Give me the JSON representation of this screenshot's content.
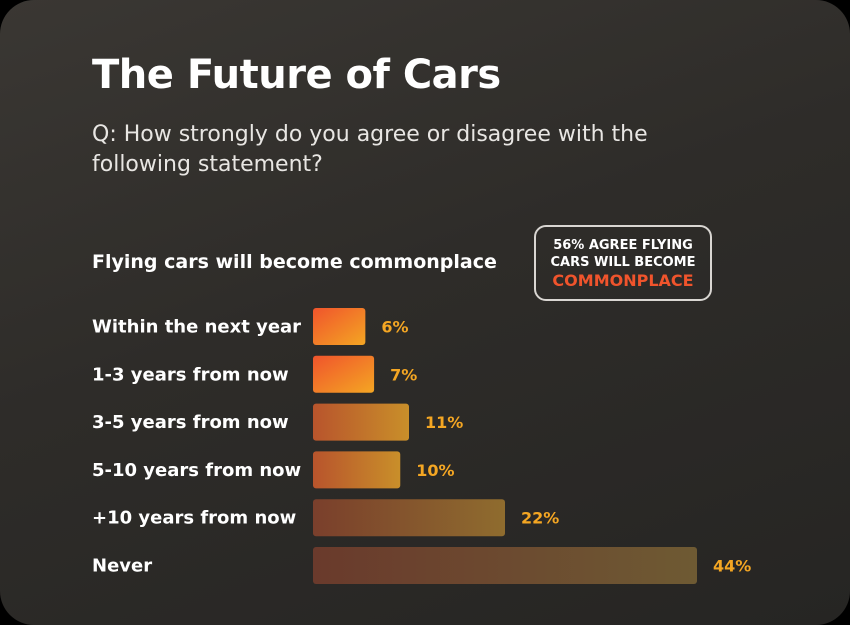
{
  "title": "The Future of Cars",
  "subtitle": "Q: How strongly do you agree or disagree with the following statement?",
  "statement": "Flying cars will become commonplace",
  "callout": {
    "line1": "56% AGREE FLYING",
    "line2": "CARS WILL BECOME",
    "accent": "COMMONPLACE"
  },
  "colors": {
    "accent": "#f0542c",
    "value_label": "#f4a623",
    "bar_bright_start": "#f0542c",
    "bar_bright_end": "#f4a623"
  },
  "chart_data": {
    "type": "bar",
    "orientation": "horizontal",
    "categories": [
      "Within the next year",
      "1-3 years from now",
      "3-5 years from now",
      "5-10 years from now",
      "+10 years from now",
      "Never"
    ],
    "values": [
      6,
      7,
      11,
      10,
      22,
      44
    ],
    "value_labels": [
      "6%",
      "7%",
      "11%",
      "10%",
      "22%",
      "44%"
    ],
    "unit": "%",
    "xlim": [
      0,
      44
    ],
    "grid": false,
    "legend": "none"
  }
}
